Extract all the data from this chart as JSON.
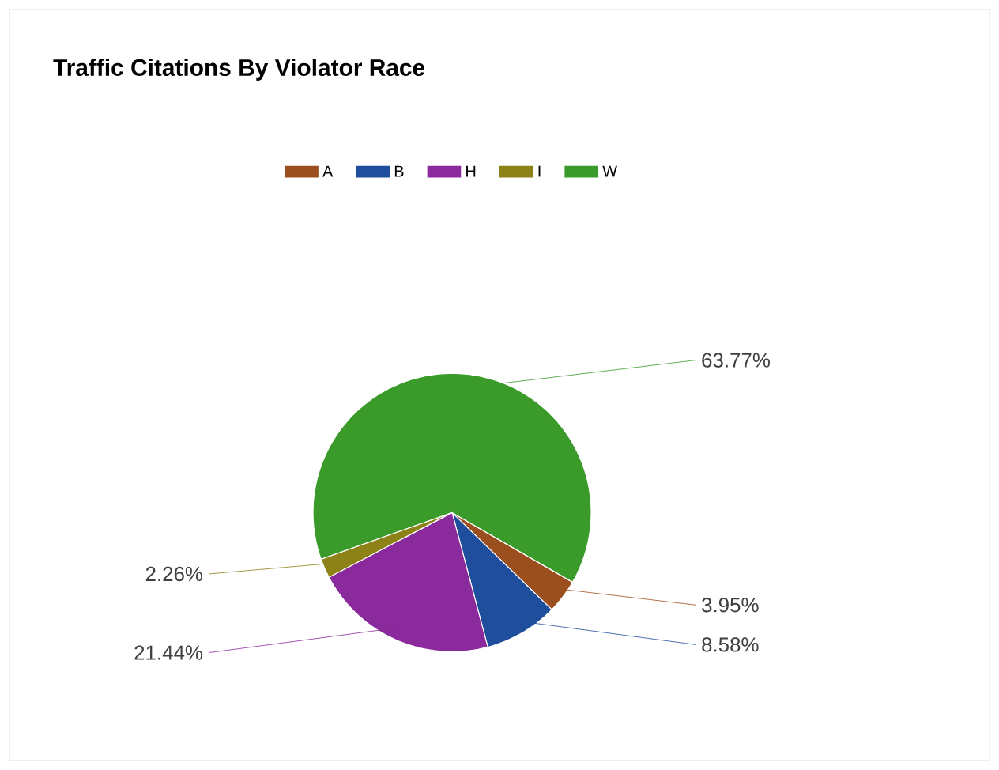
{
  "chart_data": {
    "type": "pie",
    "title": "Traffic Citations By Violator Race",
    "categories": [
      "A",
      "B",
      "H",
      "I",
      "W"
    ],
    "values": [
      3.95,
      8.58,
      21.44,
      2.26,
      63.77
    ],
    "value_labels": [
      "3.95%",
      "8.58%",
      "21.44%",
      "2.26%",
      "63.77%"
    ],
    "colors": [
      "#9c4f1e",
      "#1f4e9c",
      "#8b2a9c",
      "#8c8218",
      "#3a9a2a"
    ],
    "legend": "top"
  }
}
